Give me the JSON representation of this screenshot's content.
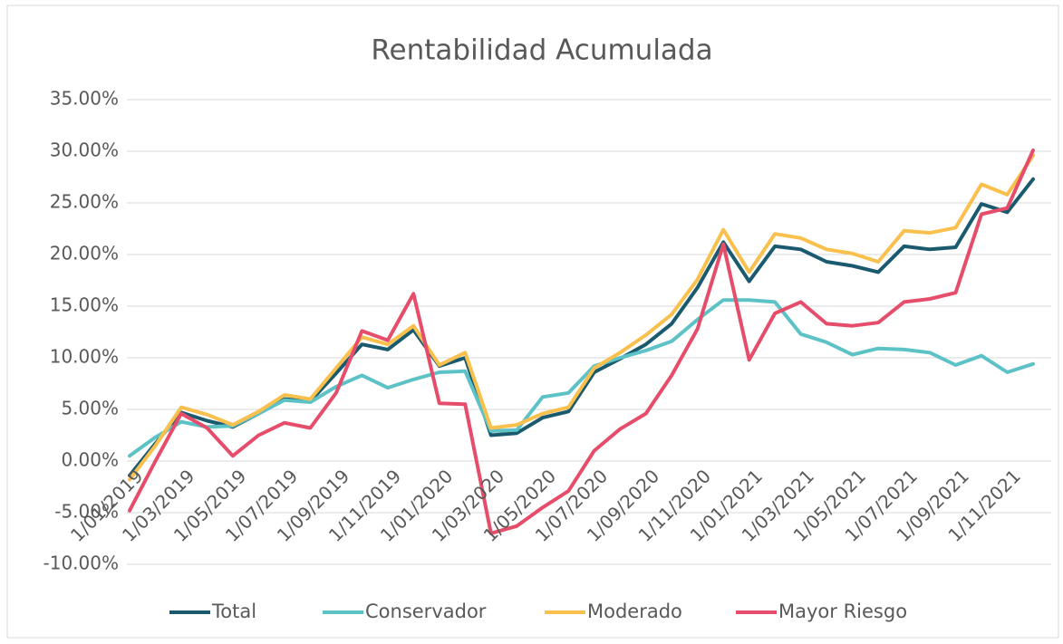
{
  "chart_data": {
    "type": "line",
    "title": "Rentabilidad Acumulada",
    "categories": [
      "1/01/2019",
      null,
      "1/03/2019",
      null,
      "1/05/2019",
      null,
      "1/07/2019",
      null,
      "1/09/2019",
      null,
      "1/11/2019",
      null,
      "1/01/2020",
      null,
      "1/03/2020",
      null,
      "1/05/2020",
      null,
      "1/07/2020",
      null,
      "1/09/2020",
      null,
      "1/11/2020",
      null,
      "1/01/2021",
      null,
      "1/03/2021",
      null,
      "1/05/2021",
      null,
      "1/07/2021",
      null,
      "1/09/2021",
      null,
      "1/11/2021",
      null
    ],
    "series": [
      {
        "name": "Total",
        "color": "#1a5a6e",
        "values": [
          -1.4,
          1.7,
          4.7,
          3.9,
          3.3,
          4.6,
          6.0,
          5.8,
          8.5,
          11.3,
          10.8,
          12.7,
          9.2,
          10.0,
          2.5,
          2.7,
          4.2,
          4.8,
          8.6,
          9.9,
          11.3,
          13.3,
          16.8,
          21.2,
          17.4,
          20.8,
          20.5,
          19.3,
          18.9,
          18.3,
          20.8,
          20.5,
          20.7,
          24.9,
          24.1,
          27.3
        ]
      },
      {
        "name": "Conservador",
        "color": "#5cc2c6",
        "values": [
          0.5,
          2.3,
          3.8,
          3.3,
          3.4,
          4.6,
          5.9,
          5.7,
          7.2,
          8.3,
          7.1,
          7.9,
          8.6,
          8.7,
          2.9,
          3.0,
          6.2,
          6.6,
          9.2,
          10.0,
          10.7,
          11.6,
          13.7,
          15.6,
          15.6,
          15.4,
          12.3,
          11.5,
          10.3,
          10.9,
          10.8,
          10.5,
          9.3,
          10.2,
          8.6,
          9.4
        ]
      },
      {
        "name": "Moderado",
        "color": "#f9c04d",
        "values": [
          -1.8,
          1.5,
          5.2,
          4.5,
          3.5,
          4.8,
          6.4,
          6.0,
          9.0,
          12.0,
          11.3,
          13.1,
          9.3,
          10.5,
          3.2,
          3.5,
          4.6,
          5.2,
          9.0,
          10.5,
          12.2,
          14.2,
          17.6,
          22.4,
          18.3,
          22.0,
          21.6,
          20.5,
          20.1,
          19.3,
          22.3,
          22.1,
          22.6,
          26.8,
          25.8,
          29.6
        ]
      },
      {
        "name": "Mayor Riesgo",
        "color": "#e64d6b",
        "values": [
          -4.8,
          0.0,
          4.6,
          3.2,
          0.5,
          2.5,
          3.7,
          3.2,
          6.6,
          12.6,
          11.7,
          16.2,
          5.6,
          5.5,
          -7.0,
          -6.3,
          -4.5,
          -2.9,
          1.0,
          3.1,
          4.6,
          8.3,
          12.8,
          21.0,
          9.8,
          14.3,
          15.4,
          13.3,
          13.1,
          13.4,
          15.4,
          15.7,
          16.3,
          23.9,
          24.5,
          30.1
        ]
      }
    ],
    "ylim": [
      -10,
      35
    ],
    "yticks": [
      {
        "value": -10,
        "label": "-10.00%"
      },
      {
        "value": -5,
        "label": "-5.00%"
      },
      {
        "value": 0,
        "label": "0.00%"
      },
      {
        "value": 5,
        "label": "5.00%"
      },
      {
        "value": 10,
        "label": "10.00%"
      },
      {
        "value": 15,
        "label": "15.00%"
      },
      {
        "value": 20,
        "label": "20.00%"
      },
      {
        "value": 25,
        "label": "25.00%"
      },
      {
        "value": 30,
        "label": "30.00%"
      },
      {
        "value": 35,
        "label": "35.00%"
      }
    ],
    "grid": true,
    "legend": "bottom"
  }
}
